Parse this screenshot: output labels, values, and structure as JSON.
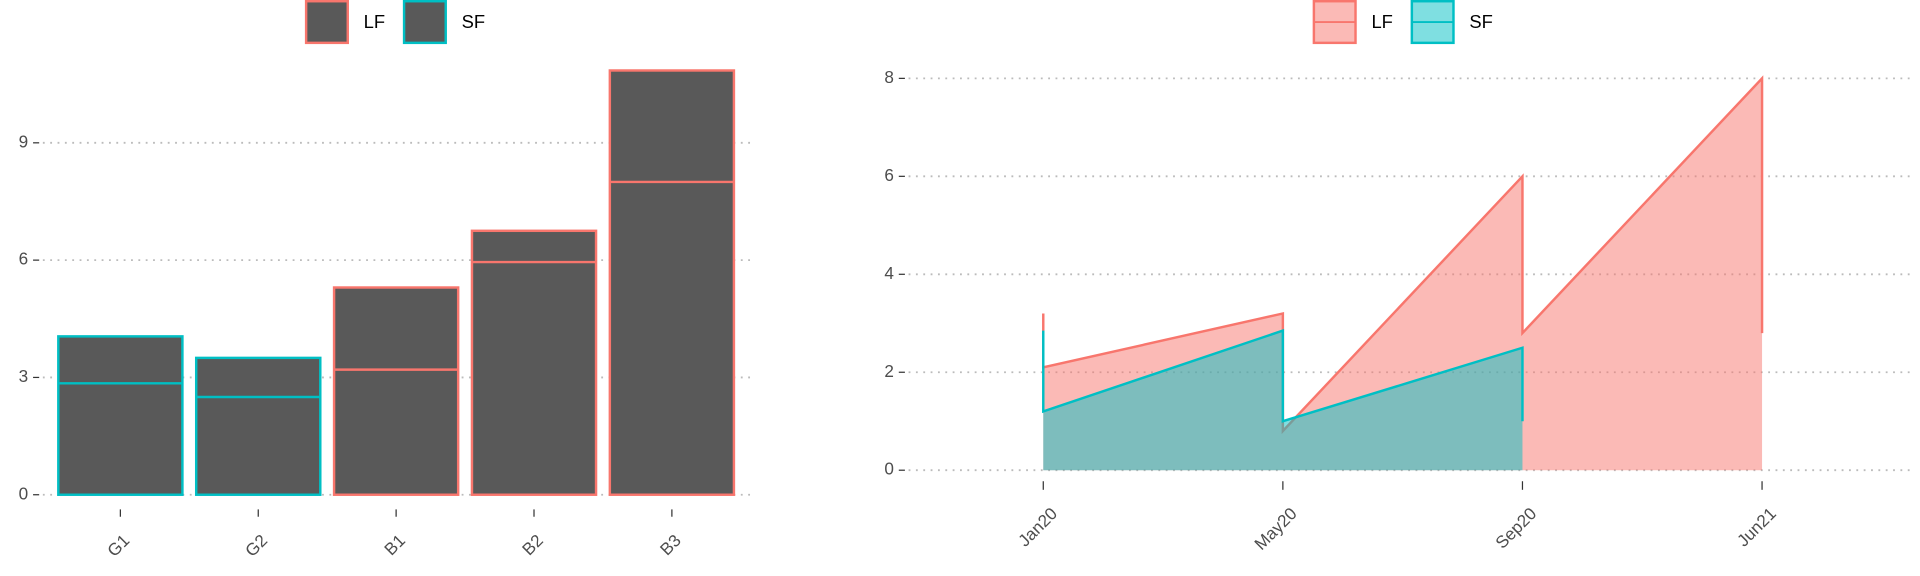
{
  "chart_data": [
    {
      "type": "bar",
      "categories": [
        "G1",
        "G2",
        "B1",
        "B2",
        "B3"
      ],
      "fill": "#595959",
      "series": [
        {
          "name": "LF",
          "color": "#f8766d",
          "values": [
            null,
            null,
            5.3,
            6.75,
            10.85
          ],
          "lines": [
            null,
            null,
            3.2,
            5.95,
            8
          ]
        },
        {
          "name": "SF",
          "color": "#00bfc4",
          "values": [
            4.05,
            3.5,
            null,
            null,
            null
          ],
          "lines": [
            2.85,
            2.5,
            null,
            null,
            null
          ]
        }
      ],
      "ylim": [
        -0.5,
        11.4
      ],
      "yticks": [
        0,
        3,
        6,
        9
      ],
      "grid": true,
      "legend": "top"
    },
    {
      "type": "area",
      "categories": [
        "Jan20",
        "May20",
        "Sep20",
        "Jun21"
      ],
      "x": [
        "Jan20",
        "Jan20",
        "May20",
        "May20",
        "Sep20",
        "Sep20",
        "Jun21",
        "Jun21"
      ],
      "series": [
        {
          "name": "LF",
          "color": "#f8766d",
          "values": [
            3.2,
            2.1,
            3.2,
            0.8,
            6.0,
            2.8,
            8.0,
            2.8
          ]
        },
        {
          "name": "SF",
          "color": "#00bfc4",
          "values": [
            2.85,
            1.2,
            2.85,
            1.0,
            2.5,
            1.0,
            null,
            null
          ]
        }
      ],
      "ylim": [
        -0.4,
        8.6
      ],
      "yticks": [
        0,
        2,
        4,
        6,
        8
      ],
      "grid": true,
      "legend": "top"
    }
  ]
}
